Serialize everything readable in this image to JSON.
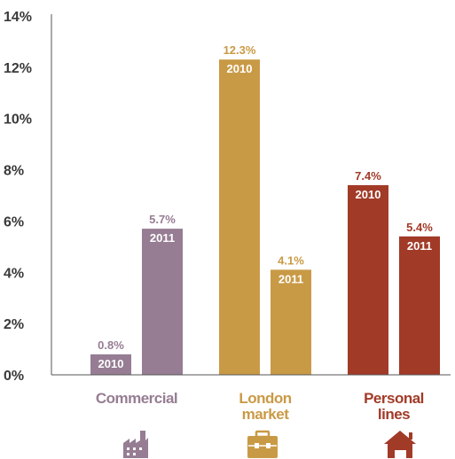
{
  "chart_data": {
    "type": "bar",
    "categories": [
      {
        "lines": [
          "Commercial"
        ],
        "color": "#967d93",
        "icon": "factory-icon"
      },
      {
        "lines": [
          "London",
          "market"
        ],
        "color": "#c99a46",
        "icon": "briefcase-icon"
      },
      {
        "lines": [
          "Personal",
          "lines"
        ],
        "color": "#a23a28",
        "icon": "house-icon"
      }
    ],
    "series": [
      {
        "year": "2010",
        "values": [
          0.8,
          12.3,
          7.4
        ],
        "labels": [
          "0.8%",
          "12.3%",
          "7.4%"
        ]
      },
      {
        "year": "2011",
        "values": [
          5.7,
          4.1,
          5.4
        ],
        "labels": [
          "5.7%",
          "4.1%",
          "5.4%"
        ]
      }
    ],
    "y_ticks": [
      "0%",
      "2%",
      "4%",
      "6%",
      "8%",
      "10%",
      "12%",
      "14%"
    ],
    "ylim": [
      0,
      14
    ]
  }
}
